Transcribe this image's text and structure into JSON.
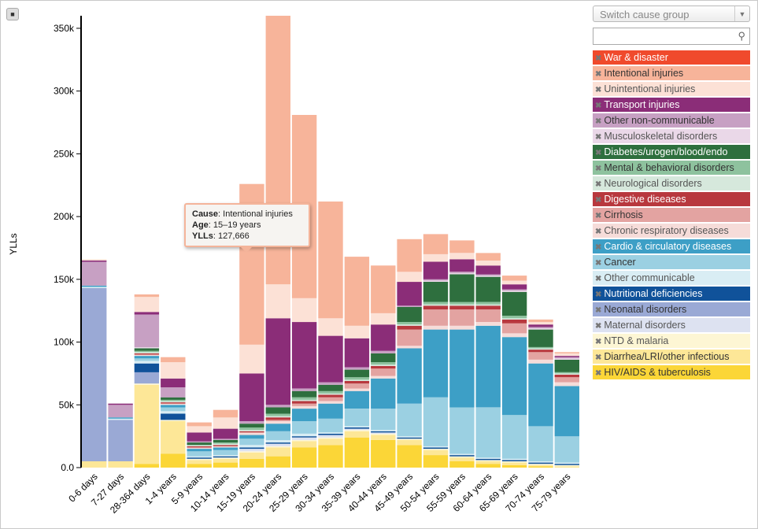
{
  "controls": {
    "lock_icon": "lock-icon",
    "dropdown_label": "Switch cause group",
    "search_value": ""
  },
  "tooltip": {
    "cause_label": "Cause",
    "cause_value": "Intentional injuries",
    "age_label": "Age",
    "age_value": "15–19 years",
    "ylls_label": "YLLs",
    "ylls_value": "127,666"
  },
  "legend": [
    {
      "name": "War & disaster",
      "color": "#f04a2c",
      "text": "#ffffff"
    },
    {
      "name": "Intentional injuries",
      "color": "#f7b49a",
      "text": "#333333"
    },
    {
      "name": "Unintentional injuries",
      "color": "#fce1d6",
      "text": "#555555"
    },
    {
      "name": "Transport injuries",
      "color": "#8b2d78",
      "text": "#ffffff"
    },
    {
      "name": "Other non-communicable",
      "color": "#c7a0c3",
      "text": "#333333"
    },
    {
      "name": "Musculoskeletal disorders",
      "color": "#ead8e8",
      "text": "#555555"
    },
    {
      "name": "Diabetes/urogen/blood/endo",
      "color": "#2e6f3e",
      "text": "#ffffff"
    },
    {
      "name": "Mental & behavioral disorders",
      "color": "#8ec29e",
      "text": "#333333"
    },
    {
      "name": "Neurological disorders",
      "color": "#d6e8dc",
      "text": "#555555"
    },
    {
      "name": "Digestive diseases",
      "color": "#b8383e",
      "text": "#ffffff"
    },
    {
      "name": "Cirrhosis",
      "color": "#e3a3a1",
      "text": "#333333"
    },
    {
      "name": "Chronic respiratory diseases",
      "color": "#f6dcd9",
      "text": "#555555"
    },
    {
      "name": "Cardio & circulatory diseases",
      "color": "#3d9fc6",
      "text": "#ffffff"
    },
    {
      "name": "Cancer",
      "color": "#9bd0e2",
      "text": "#333333"
    },
    {
      "name": "Other communicable",
      "color": "#d9edf4",
      "text": "#555555"
    },
    {
      "name": "Nutritional deficiencies",
      "color": "#10529a",
      "text": "#ffffff"
    },
    {
      "name": "Neonatal disorders",
      "color": "#9aa9d5",
      "text": "#333333"
    },
    {
      "name": "Maternal disorders",
      "color": "#dde2f1",
      "text": "#555555"
    },
    {
      "name": "NTD & malaria",
      "color": "#fdf6d4",
      "text": "#555555"
    },
    {
      "name": "Diarrhea/LRI/other infectious",
      "color": "#fde797",
      "text": "#333333"
    },
    {
      "name": "HIV/AIDS & tuberculosis",
      "color": "#fbd637",
      "text": "#333333"
    }
  ],
  "chart_data": {
    "type": "bar",
    "stacked": true,
    "ylabel": "YLLs",
    "ylim": [
      0,
      360000
    ],
    "yticks": [
      0,
      50000,
      100000,
      150000,
      200000,
      250000,
      300000,
      350000
    ],
    "ytick_labels": [
      "0.0",
      "50k",
      "100k",
      "150k",
      "200k",
      "250k",
      "300k",
      "350k"
    ],
    "categories": [
      "0-6 days",
      "7-27 days",
      "28-364 days",
      "1-4 years",
      "5-9 years",
      "10-14 years",
      "15-19 years",
      "20-24 years",
      "25-29 years",
      "30-34 years",
      "35-39 years",
      "40-44 years",
      "45-49 years",
      "50-54 years",
      "55-59 years",
      "60-64 years",
      "65-69 years",
      "70-74 years",
      "75-79 years"
    ],
    "series": [
      {
        "name": "HIV/AIDS & tuberculosis",
        "values": [
          0,
          0,
          3000,
          11000,
          3000,
          4000,
          7000,
          9000,
          16000,
          18000,
          24000,
          22000,
          18000,
          10000,
          5000,
          3000,
          2000,
          1000,
          0
        ]
      },
      {
        "name": "Diarrhea/LRI/other infectious",
        "values": [
          5000,
          5000,
          63000,
          26000,
          3000,
          3000,
          5000,
          7000,
          5000,
          5000,
          5000,
          4000,
          4000,
          4000,
          3000,
          2000,
          2000,
          1000,
          1000
        ]
      },
      {
        "name": "NTD & malaria",
        "values": [
          0,
          0,
          1000,
          1000,
          1000,
          1000,
          1000,
          1000,
          1000,
          1000,
          1000,
          1000,
          1000,
          1000,
          1000,
          1000,
          1000,
          1000,
          1000
        ]
      },
      {
        "name": "Maternal disorders",
        "values": [
          0,
          0,
          0,
          0,
          0,
          0,
          2000,
          2000,
          2000,
          2000,
          1000,
          1000,
          0,
          0,
          0,
          0,
          0,
          0,
          0
        ]
      },
      {
        "name": "Neonatal disorders",
        "values": [
          138000,
          33000,
          9000,
          0,
          0,
          0,
          0,
          0,
          0,
          0,
          0,
          0,
          0,
          0,
          0,
          0,
          0,
          0,
          0
        ]
      },
      {
        "name": "Nutritional deficiencies",
        "values": [
          0,
          0,
          7000,
          5000,
          1000,
          1000,
          1000,
          1000,
          1000,
          1000,
          1000,
          1000,
          1000,
          1000,
          1000,
          1000,
          1000,
          1000,
          1000
        ]
      },
      {
        "name": "Other communicable",
        "values": [
          1000,
          1000,
          2000,
          2000,
          1000,
          1000,
          2000,
          2000,
          2000,
          1000,
          1000,
          1000,
          1000,
          1000,
          1000,
          1000,
          1000,
          1000,
          1000
        ]
      },
      {
        "name": "Cancer",
        "values": [
          0,
          0,
          2000,
          3000,
          4000,
          4000,
          5000,
          7000,
          10000,
          11000,
          14000,
          17000,
          26000,
          39000,
          37000,
          40000,
          35000,
          28000,
          21000
        ]
      },
      {
        "name": "Cardio & circulatory diseases",
        "values": [
          1000,
          1000,
          2000,
          2000,
          2000,
          2000,
          3000,
          6000,
          10000,
          12000,
          14000,
          24000,
          44000,
          54000,
          62000,
          65000,
          62000,
          50000,
          40000
        ]
      },
      {
        "name": "Chronic respiratory diseases",
        "values": [
          0,
          0,
          1000,
          1000,
          1000,
          1000,
          2000,
          2000,
          2000,
          2000,
          2000,
          2000,
          2000,
          3000,
          3000,
          3000,
          3000,
          3000,
          3000
        ]
      },
      {
        "name": "Cirrhosis",
        "values": [
          0,
          0,
          0,
          0,
          0,
          0,
          0,
          1000,
          2000,
          3000,
          4000,
          6000,
          13000,
          13000,
          13000,
          10000,
          8000,
          6000,
          4000
        ]
      },
      {
        "name": "Digestive diseases",
        "values": [
          0,
          0,
          1000,
          1000,
          1000,
          1000,
          1000,
          2000,
          2000,
          2000,
          2000,
          2000,
          3000,
          3000,
          3000,
          3000,
          3000,
          2000,
          2000
        ]
      },
      {
        "name": "Neurological disorders",
        "values": [
          0,
          0,
          1000,
          1000,
          1000,
          1000,
          1000,
          1000,
          1000,
          1000,
          1000,
          1000,
          1000,
          1000,
          1000,
          1000,
          1000,
          1000,
          1000
        ]
      },
      {
        "name": "Mental & behavioral disorders",
        "values": [
          0,
          0,
          1000,
          1000,
          0,
          1000,
          2000,
          2000,
          2000,
          2000,
          2000,
          2000,
          2000,
          2000,
          2000,
          2000,
          2000,
          1000,
          1000
        ]
      },
      {
        "name": "Diabetes/urogen/blood/endo",
        "values": [
          0,
          0,
          2000,
          2000,
          2000,
          2000,
          3000,
          5000,
          5000,
          5000,
          6000,
          7000,
          12000,
          16000,
          22000,
          20000,
          19000,
          14000,
          10000
        ]
      },
      {
        "name": "Musculoskeletal disorders",
        "values": [
          0,
          0,
          1000,
          0,
          0,
          0,
          0,
          0,
          0,
          0,
          0,
          0,
          0,
          1000,
          1000,
          1000,
          1000,
          1000,
          1000
        ]
      },
      {
        "name": "Other non-communicable",
        "values": [
          19000,
          10000,
          26000,
          8000,
          1000,
          1000,
          2000,
          2000,
          2000,
          2000,
          2000,
          2000,
          1000,
          1000,
          1000,
          1000,
          1000,
          1000,
          1000
        ]
      },
      {
        "name": "Transport injuries",
        "values": [
          1000,
          1000,
          2000,
          7000,
          7000,
          8000,
          38000,
          69000,
          53000,
          37000,
          23000,
          21000,
          19000,
          14000,
          10000,
          7000,
          4000,
          2000,
          1000
        ]
      },
      {
        "name": "Unintentional injuries",
        "values": [
          1000,
          0,
          12000,
          13000,
          5000,
          9000,
          23000,
          27000,
          19000,
          14000,
          10000,
          9000,
          8000,
          6000,
          5000,
          4000,
          3000,
          2000,
          2000
        ]
      },
      {
        "name": "Intentional injuries",
        "values": [
          0,
          0,
          2000,
          4000,
          3000,
          6000,
          128000,
          214000,
          146000,
          93000,
          55000,
          38000,
          26000,
          16000,
          10000,
          6000,
          4000,
          2000,
          1000
        ]
      },
      {
        "name": "War & disaster",
        "values": [
          0,
          0,
          0,
          0,
          0,
          0,
          0,
          0,
          0,
          0,
          0,
          0,
          0,
          0,
          0,
          0,
          0,
          0,
          0
        ]
      }
    ]
  }
}
